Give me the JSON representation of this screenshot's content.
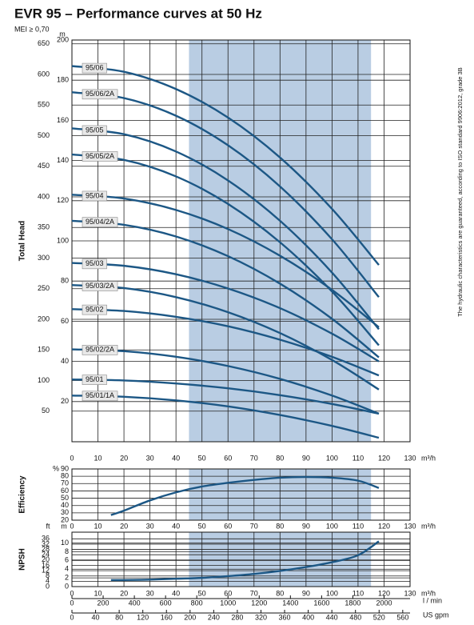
{
  "title": "EVR 95 – Performance curves at 50 Hz",
  "subtitle": "MEI ≥ 0,70",
  "note": "The hydraulic characteristics are guaranteed, according to ISO standard 9906:2012, grade 3B",
  "chart_data": [
    {
      "type": "line",
      "y_label": "Total Head",
      "x_unit": "m³/h",
      "y_unit": "m",
      "xlim": [
        0,
        130
      ],
      "xticks": [
        0,
        10,
        20,
        30,
        40,
        50,
        60,
        70,
        80,
        90,
        100,
        110,
        120,
        130
      ],
      "ylim": [
        0,
        200
      ],
      "yticks": [
        20,
        40,
        60,
        80,
        100,
        120,
        140,
        160,
        180,
        200
      ],
      "y2lim": [
        0,
        656.2
      ],
      "y2ticks": [
        50,
        100,
        150,
        200,
        250,
        300,
        350,
        400,
        450,
        500,
        550,
        600,
        650
      ],
      "shaded_range": [
        45,
        115
      ],
      "shade_color": "#b9cde3",
      "color": "#1c5785",
      "grid": true,
      "x": [
        0,
        20,
        40,
        60,
        80,
        100,
        118
      ],
      "series": [
        {
          "name": "95/06",
          "values": [
            187,
            184.2,
            175.6,
            161.4,
            141.5,
            115.9,
            88
          ]
        },
        {
          "name": "95/06/2A",
          "values": [
            174,
            171.1,
            162.3,
            147.6,
            127.1,
            100.8,
            72
          ]
        },
        {
          "name": "95/05",
          "values": [
            156,
            153.1,
            144.5,
            130.1,
            110,
            84.2,
            56
          ]
        },
        {
          "name": "95/05/2A",
          "values": [
            143,
            140.3,
            132.1,
            118.4,
            99.3,
            74.8,
            48
          ]
        },
        {
          "name": "95/04",
          "values": [
            123,
            121.1,
            115.4,
            105.9,
            92.6,
            75.6,
            57
          ]
        },
        {
          "name": "95/04/2A",
          "values": [
            110,
            108,
            102.2,
            92.4,
            78.7,
            61.2,
            42
          ]
        },
        {
          "name": "95/03",
          "values": [
            89,
            87.6,
            83.4,
            76.3,
            66.5,
            53.8,
            40
          ]
        },
        {
          "name": "95/03/2A",
          "values": [
            78,
            76.5,
            72,
            64.5,
            54.1,
            40.7,
            26
          ]
        },
        {
          "name": "95/02",
          "values": [
            66,
            65.1,
            62.2,
            57.5,
            50.8,
            42.3,
            33
          ]
        },
        {
          "name": "95/02/2A",
          "values": [
            46,
            45.1,
            42.3,
            37.7,
            31.3,
            23,
            14
          ]
        },
        {
          "name": "95/01",
          "values": [
            31,
            30.5,
            29,
            26.6,
            23.2,
            18.8,
            14
          ]
        },
        {
          "name": "95/01/1A",
          "values": [
            23,
            22.4,
            20.6,
            17.6,
            13.3,
            7.9,
            2
          ]
        }
      ]
    },
    {
      "type": "line",
      "y_label": "Efficiency",
      "x_unit": "m³/h",
      "y_unit": "%",
      "xlim": [
        0,
        130
      ],
      "xticks": [
        0,
        10,
        20,
        30,
        40,
        50,
        60,
        70,
        80,
        90,
        100,
        110,
        120,
        130
      ],
      "ylim": [
        20,
        90
      ],
      "yticks": [
        20,
        30,
        40,
        50,
        60,
        70,
        80,
        90
      ],
      "shaded_range": [
        45,
        115
      ],
      "shade_color": "#b9cde3",
      "color": "#1c5785",
      "grid": true,
      "x": [
        15,
        20,
        30,
        40,
        50,
        60,
        70,
        80,
        90,
        100,
        110,
        118
      ],
      "series": [
        {
          "values": [
            27,
            33,
            47,
            58,
            66,
            71,
            75,
            78,
            79,
            78,
            74,
            64
          ]
        }
      ]
    },
    {
      "type": "line",
      "y_label": "NPSH",
      "x_unit": "m³/h",
      "y_unit": "m",
      "y2_unit": "ft",
      "xlim": [
        0,
        130
      ],
      "xticks": [
        0,
        10,
        20,
        30,
        40,
        50,
        60,
        70,
        80,
        90,
        100,
        110,
        120,
        130
      ],
      "ylim": [
        0,
        12.5
      ],
      "yticks": [
        0,
        2,
        4,
        6,
        8,
        10
      ],
      "y2lim": [
        0,
        41
      ],
      "y2ticks": [
        0,
        4,
        8,
        12,
        16,
        20,
        24,
        28,
        32,
        36
      ],
      "shaded_range": [
        45,
        115
      ],
      "shade_color": "#b9cde3",
      "color": "#1c5785",
      "grid": true,
      "x": [
        15,
        20,
        30,
        40,
        50,
        60,
        70,
        80,
        90,
        100,
        110,
        118
      ],
      "series": [
        {
          "values": [
            1.5,
            1.5,
            1.6,
            1.8,
            2.0,
            2.4,
            2.9,
            3.6,
            4.5,
            5.6,
            7.2,
            10.4
          ]
        }
      ],
      "extra_axes": [
        {
          "label": "l / min",
          "lim": [
            0,
            2166.7
          ],
          "ticks": [
            0,
            200,
            400,
            600,
            800,
            1000,
            1200,
            1400,
            1600,
            1800,
            2000
          ]
        },
        {
          "label": "US gpm",
          "lim": [
            0,
            572.4
          ],
          "ticks": [
            0,
            40,
            80,
            120,
            160,
            200,
            240,
            280,
            320,
            360,
            400,
            440,
            480,
            520,
            560
          ]
        }
      ]
    }
  ]
}
